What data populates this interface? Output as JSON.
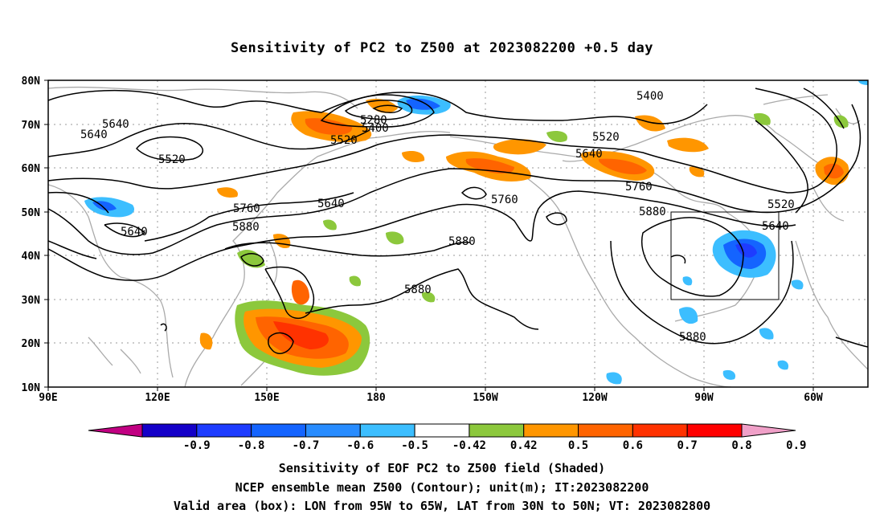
{
  "title": "Sensitivity of PC2 to Z500 at 2023082200 +0.5 day",
  "map": {
    "lat_labels": [
      "80N",
      "70N",
      "60N",
      "50N",
      "40N",
      "30N",
      "20N",
      "10N"
    ],
    "lon_labels": [
      "90E",
      "120E",
      "150E",
      "180",
      "150W",
      "120W",
      "90W",
      "60W"
    ],
    "contour_labels": [
      "5640",
      "5640",
      "5520",
      "5280",
      "5400",
      "5520",
      "5400",
      "5520",
      "5640",
      "5760",
      "5640",
      "5640",
      "5760",
      "5880",
      "5760",
      "5880",
      "5880",
      "5880",
      "5520",
      "5640",
      "5880"
    ],
    "box": {
      "lon_west": "95W",
      "lon_east": "65W",
      "lat_south": "30N",
      "lat_north": "50N"
    }
  },
  "colorbar": {
    "labels": [
      "-0.9",
      "-0.8",
      "-0.7",
      "-0.6",
      "-0.5",
      "-0.42",
      "0.42",
      "0.5",
      "0.6",
      "0.7",
      "0.8",
      "0.9"
    ],
    "colors": [
      "#c10082",
      "#1400c8",
      "#1e3cff",
      "#1464ff",
      "#288cff",
      "#3cbeff",
      "#ffffff",
      "#8cc83c",
      "#ff9600",
      "#ff6400",
      "#ff3200",
      "#ff0000",
      "#f0a0c8"
    ]
  },
  "captions": {
    "line1": "Sensitivity of EOF PC2 to Z500 field (Shaded)",
    "line2": "NCEP ensemble mean Z500 (Contour); unit(m); IT:2023082200",
    "line3": "Valid area (box): LON from 95W to 65W, LAT from 30N to 50N; VT: 2023082800"
  }
}
